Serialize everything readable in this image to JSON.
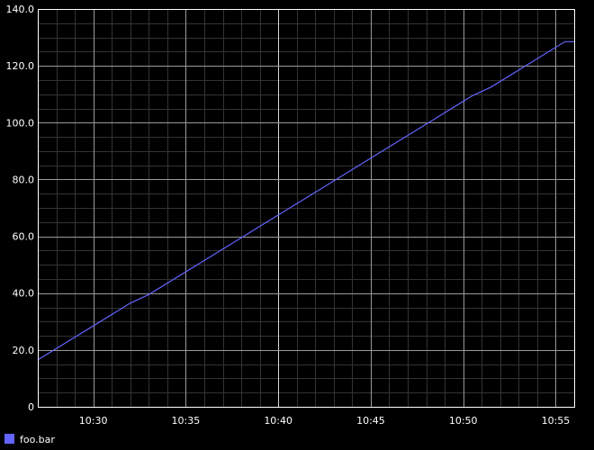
{
  "chart_data": {
    "type": "line",
    "title": "",
    "xlabel": "",
    "ylabel": "",
    "x_unit": "time of day (HH:MM)",
    "xlim": [
      "10:27",
      "10:56"
    ],
    "ylim": [
      0,
      140
    ],
    "y_ticks": [
      0,
      20,
      40,
      60,
      80,
      100,
      120,
      140
    ],
    "y_tick_labels": [
      "0",
      "20.0",
      "40.0",
      "60.0",
      "80.0",
      "100.0",
      "120.0",
      "140.0"
    ],
    "x_ticks": [
      "10:30",
      "10:35",
      "10:40",
      "10:45",
      "10:50",
      "10:55"
    ],
    "grid": true,
    "legend_position": "bottom-left",
    "series": [
      {
        "name": "foo.bar",
        "color": "#6464ff",
        "x": [
          "10:27",
          "10:32",
          "10:33",
          "10:40",
          "10:45",
          "10:50.5",
          "10:51.5",
          "10:55.5",
          "10:56"
        ],
        "y": [
          16.5,
          36.5,
          39.5,
          67.5,
          87.5,
          109.5,
          112.5,
          128.5,
          128.5
        ]
      }
    ]
  },
  "colors": {
    "background": "#000000",
    "plot_background": "#000000",
    "axis": "#ffffff",
    "major_grid": "#9a9a9a",
    "minor_grid": "#333333",
    "text": "#ffffff"
  }
}
